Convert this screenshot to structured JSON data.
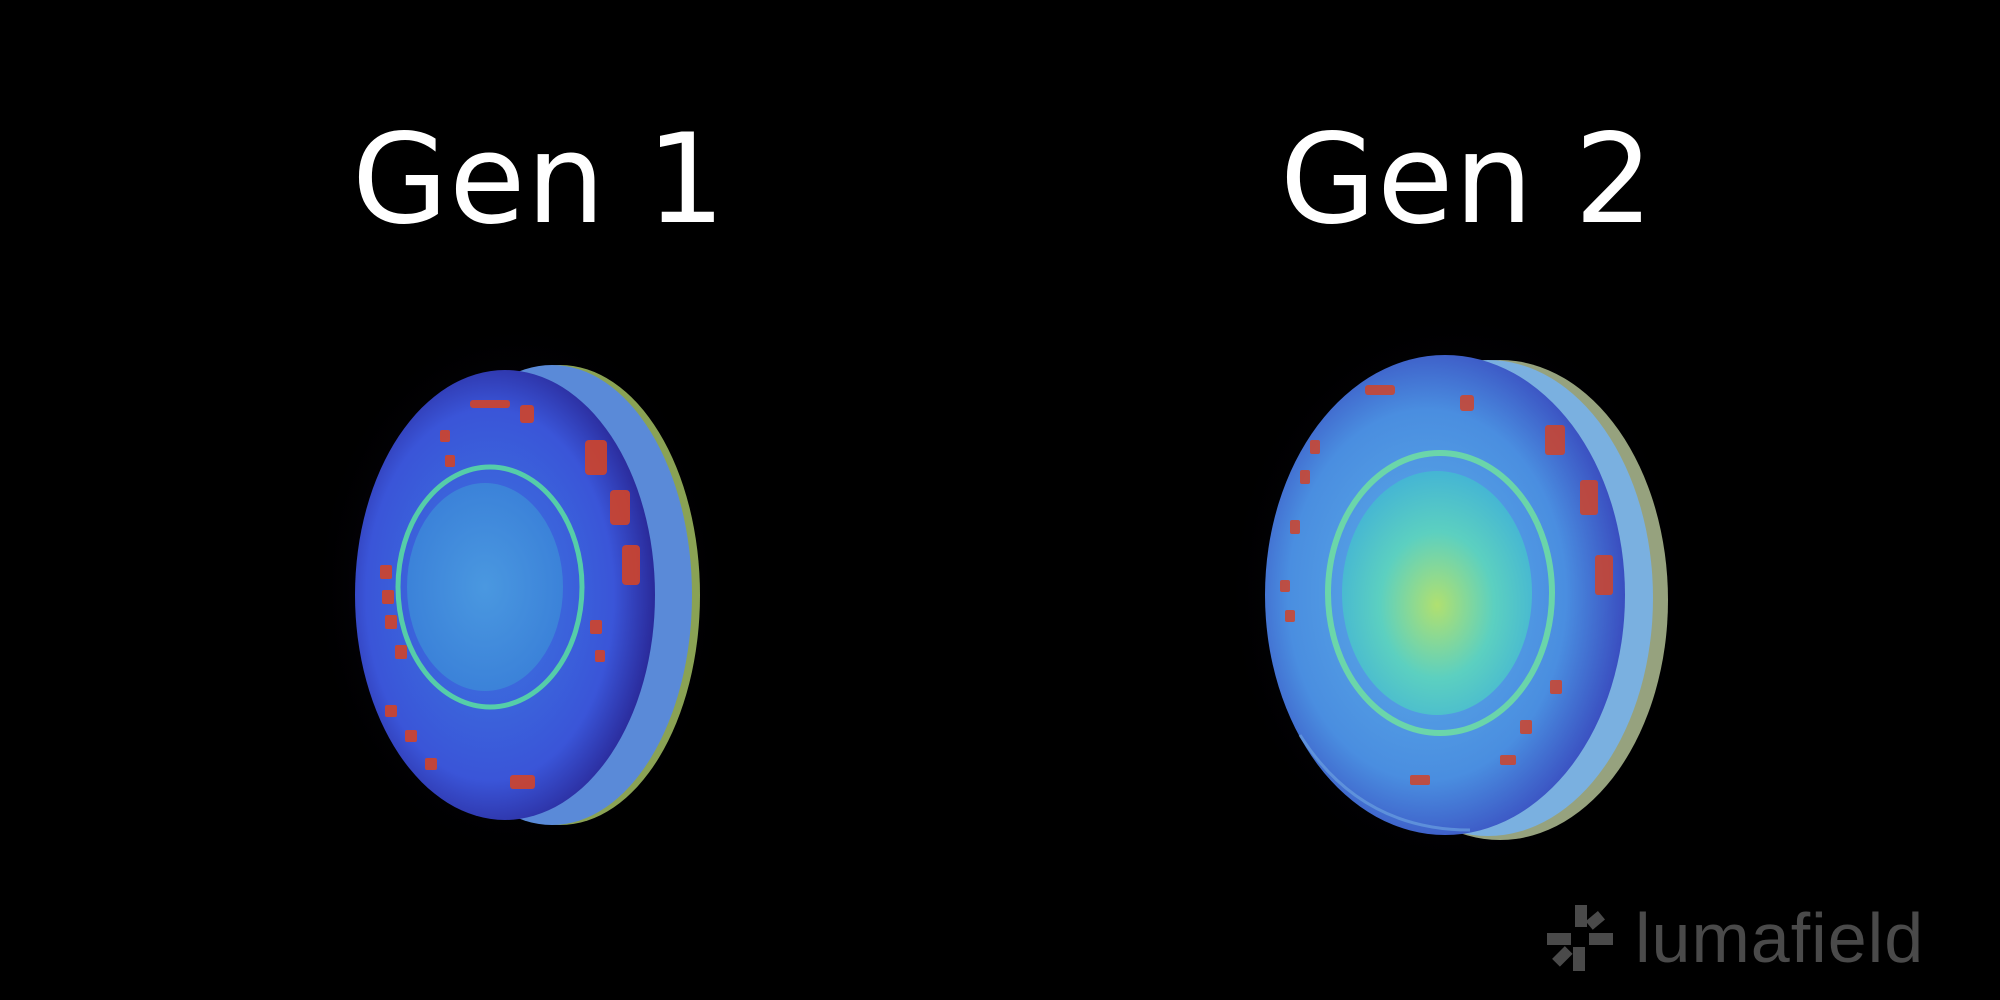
{
  "labels": {
    "left_title": "Gen 1",
    "right_title": "Gen 2"
  },
  "images": [
    {
      "name": "gen-1-ct-scan",
      "description_icon": "earbud-ct-scan"
    },
    {
      "name": "gen-2-ct-scan",
      "description_icon": "earbud-ct-scan"
    }
  ],
  "brand": {
    "logo_text": "lumafield",
    "logo_color": "#4a4a4a"
  },
  "colors": {
    "background": "#000000",
    "title": "#ffffff",
    "scan_blue": "#3a6fe0",
    "scan_cyan": "#4fc3e8",
    "scan_yellow": "#d8e070",
    "scan_red": "#d0442a"
  }
}
